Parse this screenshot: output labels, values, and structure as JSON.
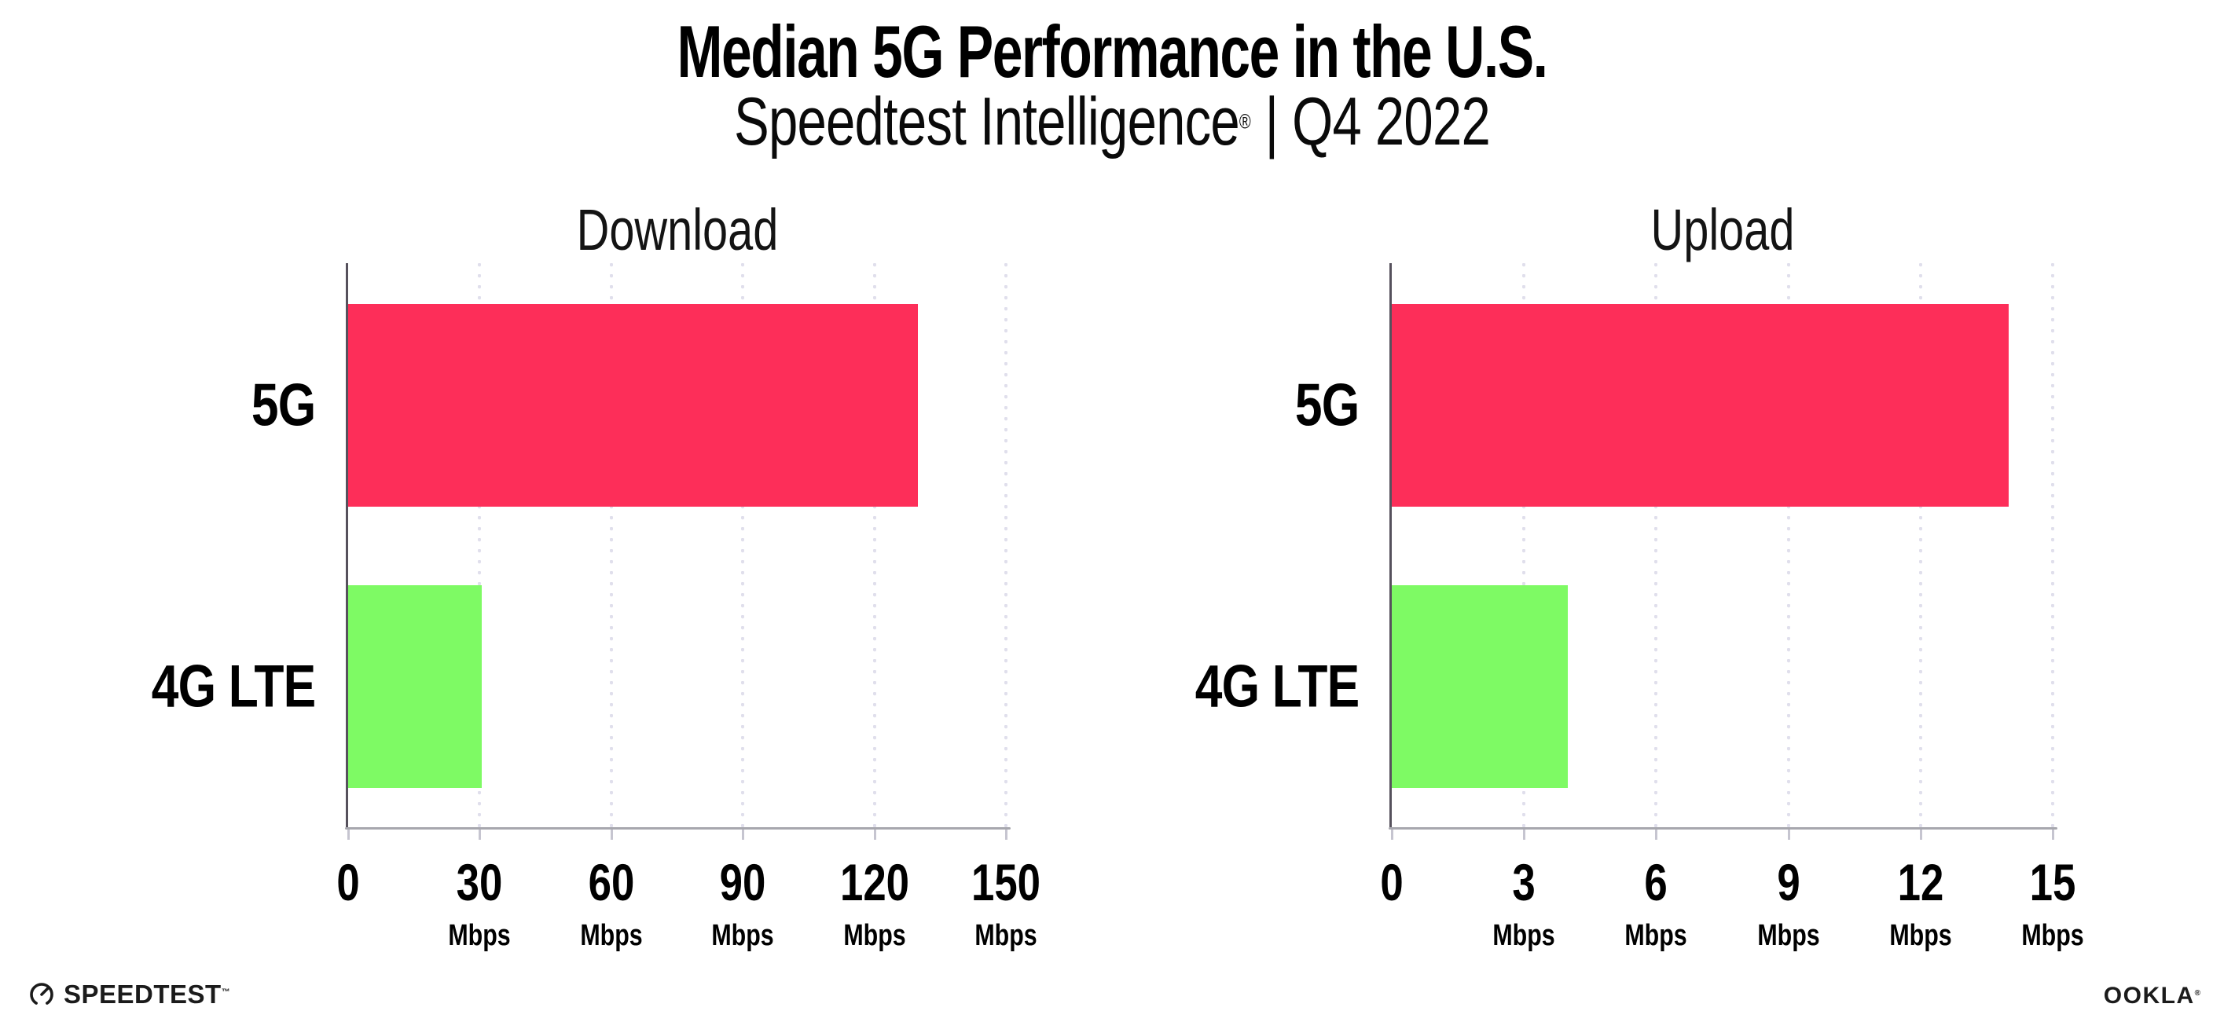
{
  "header": {
    "title": "Median 5G Performance in the U.S.",
    "subtitle_brand": "Speedtest Intelligence",
    "subtitle_reg": "®",
    "subtitle_rest": " | Q4 2022"
  },
  "chart_data": [
    {
      "type": "bar",
      "orientation": "horizontal",
      "title": "Download",
      "categories": [
        "5G",
        "4G LTE"
      ],
      "values": [
        130,
        30.5
      ],
      "unit": "Mbps",
      "xlim": [
        0,
        150
      ],
      "xticks": [
        0,
        30,
        60,
        90,
        120,
        150
      ],
      "bar_colors": [
        "#fd2e59",
        "#7efa64"
      ],
      "grid": "vertical-dotted",
      "legend": "none"
    },
    {
      "type": "bar",
      "orientation": "horizontal",
      "title": "Upload",
      "categories": [
        "5G",
        "4G LTE"
      ],
      "values": [
        14,
        4
      ],
      "unit": "Mbps",
      "xlim": [
        0,
        15
      ],
      "xticks": [
        0,
        3,
        6,
        9,
        12,
        15
      ],
      "bar_colors": [
        "#fd2e59",
        "#7efa64"
      ],
      "grid": "vertical-dotted",
      "legend": "none"
    }
  ],
  "colors": {
    "bar_5g": "#fd2e59",
    "bar_4g_lte": "#7efa64",
    "gridline_dots": "#e0dfec",
    "y_spine": "#56515c",
    "x_spine": "#a7a7ae",
    "tick_mark": "#c6c5d0",
    "text": "#000000"
  },
  "footer": {
    "speedtest_label": "SPEEDTEST",
    "speedtest_tm": "™",
    "ookla_label": "OOKLA",
    "ookla_reg": "®"
  }
}
